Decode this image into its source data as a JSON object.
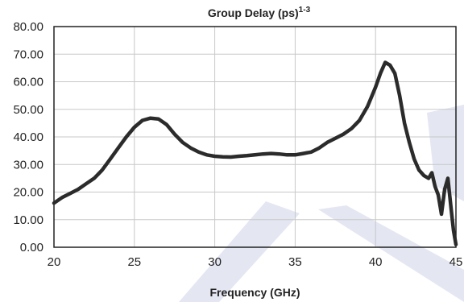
{
  "chart_data": {
    "type": "line",
    "title": "Group Delay (ps)",
    "title_sup": "1-3",
    "xlabel": "Frequency (GHz)",
    "ylabel": "",
    "xlim": [
      20,
      45
    ],
    "ylim": [
      0,
      80
    ],
    "xticks": [
      "20",
      "25",
      "30",
      "35",
      "40",
      "45"
    ],
    "yticks": [
      "0.00",
      "10.00",
      "20.00",
      "30.00",
      "40.00",
      "50.00",
      "60.00",
      "70.00",
      "80.00"
    ],
    "grid": true,
    "line_color": "#2b2b2b",
    "watermark_color": "#2e3f9e",
    "series": [
      {
        "x": [
          20,
          20.5,
          21,
          21.5,
          22,
          22.5,
          23,
          23.5,
          24,
          24.5,
          25,
          25.5,
          26,
          26.5,
          27,
          27.5,
          28,
          28.5,
          29,
          29.5,
          30,
          30.5,
          31,
          31.5,
          32,
          32.5,
          33,
          33.5,
          34,
          34.5,
          35,
          35.5,
          36,
          36.5,
          37,
          37.5,
          38,
          38.5,
          39,
          39.5,
          40,
          40.3,
          40.6,
          40.9,
          41.2,
          41.5,
          41.8,
          42.1,
          42.4,
          42.7,
          43,
          43.3,
          43.5,
          43.7,
          43.9,
          44.1,
          44.3,
          44.5,
          44.7,
          44.85,
          45
        ],
        "y": [
          16,
          18,
          19.5,
          21,
          23,
          25,
          28,
          32,
          36,
          40,
          43.5,
          46,
          46.8,
          46.5,
          44.5,
          41,
          38,
          36,
          34.5,
          33.5,
          33,
          32.8,
          32.7,
          33,
          33.2,
          33.5,
          33.8,
          34,
          33.8,
          33.5,
          33.5,
          34,
          34.5,
          36,
          38,
          39.5,
          41,
          43,
          46,
          51,
          58,
          63,
          67,
          66,
          63,
          55,
          45,
          38,
          32,
          28,
          26,
          25,
          27,
          22,
          19,
          12,
          21,
          25,
          14,
          6,
          1
        ]
      }
    ]
  }
}
